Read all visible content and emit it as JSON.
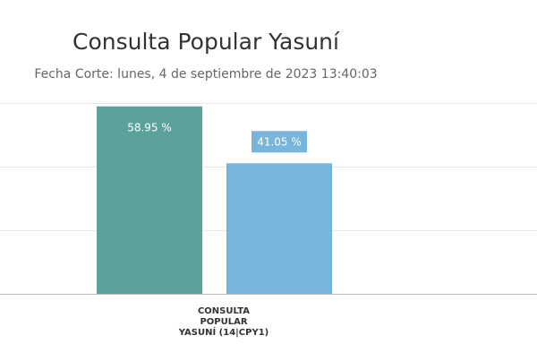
{
  "chart_data": {
    "type": "bar",
    "title": "Consulta Popular Yasuní",
    "subtitle": "Fecha Corte: lunes, 4 de septiembre de 2023 13:40:03",
    "categories": [
      "CONSULTA POPULAR YASUNÍ (14|CPY1)"
    ],
    "category_label_lines": [
      "CONSULTA",
      "POPULAR",
      "YASUNÍ (14|CPY1)"
    ],
    "series": [
      {
        "values": [
          58.95
        ],
        "color": "#5ba39a",
        "label": "58.95 %"
      },
      {
        "values": [
          41.05
        ],
        "color": "#79b4db",
        "label": "41.05 %"
      }
    ],
    "ylim": [
      0,
      60
    ],
    "grid": true,
    "legend": "none"
  }
}
